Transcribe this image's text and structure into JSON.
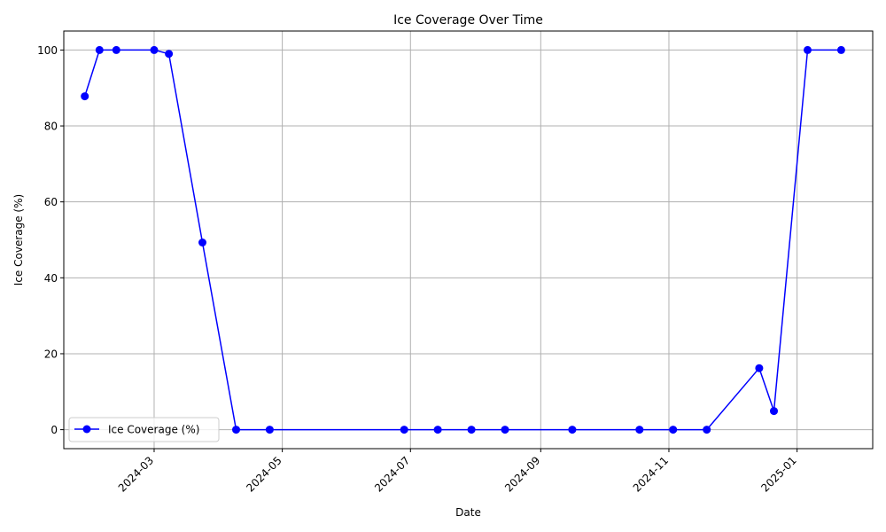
{
  "chart_data": {
    "type": "line",
    "title": "Ice Coverage Over Time",
    "xlabel": "Date",
    "ylabel": "Ice Coverage (%)",
    "x_ticks": [
      "2024-03",
      "2024-05",
      "2024-07",
      "2024-09",
      "2024-11",
      "2025-01"
    ],
    "y_ticks": [
      0,
      20,
      40,
      60,
      80,
      100
    ],
    "xlim": [
      "2024-01-18",
      "2025-02-06"
    ],
    "ylim": [
      -5,
      105
    ],
    "grid": true,
    "legend_position": "lower-left",
    "series": [
      {
        "name": "Ice Coverage (%)",
        "color": "#0000ff",
        "marker": "circle",
        "x": [
          "2024-01-28",
          "2024-02-04",
          "2024-02-12",
          "2024-03-01",
          "2024-03-08",
          "2024-03-24",
          "2024-04-09",
          "2024-04-25",
          "2024-06-28",
          "2024-07-14",
          "2024-07-30",
          "2024-08-15",
          "2024-09-16",
          "2024-10-18",
          "2024-11-03",
          "2024-11-19",
          "2024-12-14",
          "2024-12-21",
          "2025-01-06",
          "2025-01-22"
        ],
        "y": [
          87.8,
          100,
          100,
          100,
          99.0,
          49.3,
          0,
          0,
          0,
          0,
          0,
          0,
          0,
          0,
          0,
          0,
          16.2,
          4.9,
          100,
          100
        ]
      }
    ]
  }
}
